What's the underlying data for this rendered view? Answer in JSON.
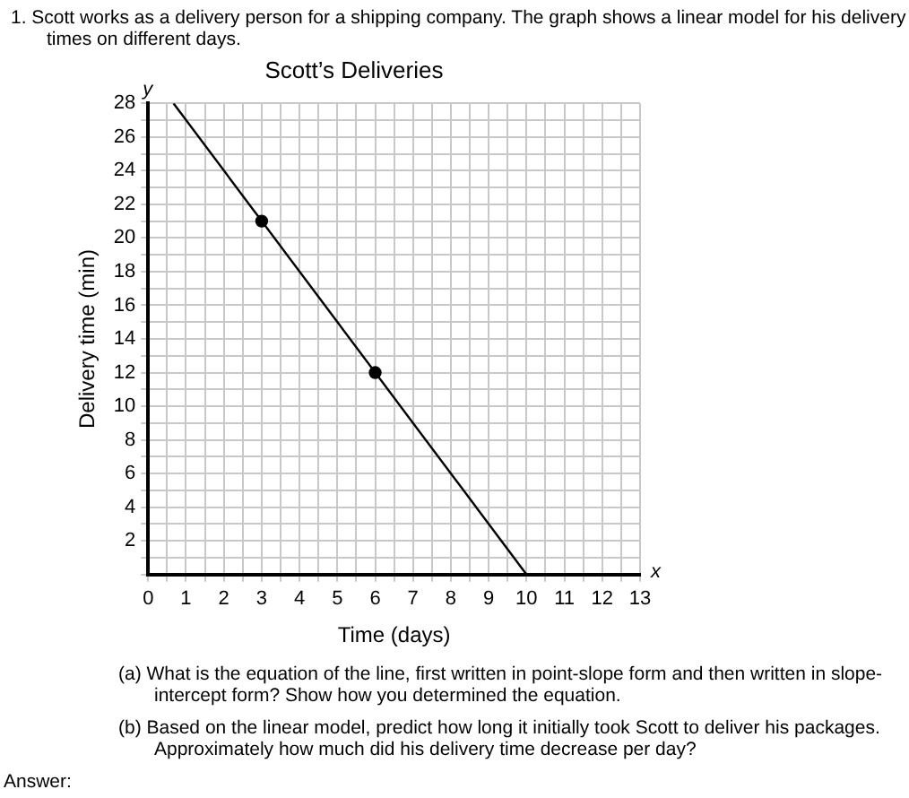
{
  "chart_data": {
    "type": "line",
    "title": "Scott’s Deliveries",
    "xlabel": "Time (days)",
    "ylabel": "Delivery time (min)",
    "annotations": [
      "1.  Scott works as a delivery person for a shipping company. The graph shows a linear model for his delivery times on different days.",
      "y",
      "x",
      "(a)  What is the equation of the line, first written in point-slope form and then written in slope-intercept form? Show how you determined the equation.",
      "(b)  Based on the linear model, predict how long it initially took Scott to deliver his packages. Approximately how much did his delivery time decrease per day?",
      "Answer:"
    ],
    "series": [
      {
        "color": "#000000",
        "x": [
          0.67,
          10
        ],
        "values": [
          28,
          0
        ],
        "marker": "none"
      },
      {
        "type": "scatter",
        "color": "#000000",
        "x": [
          3,
          6
        ],
        "values": [
          21,
          12
        ],
        "marker": "circle"
      }
    ],
    "xlim": [
      0,
      13
    ],
    "ylim": [
      0,
      28
    ],
    "xticks": [
      0,
      {
        "value": 0.5,
        "label": null
      },
      1,
      {
        "value": 1.5,
        "label": null
      },
      2,
      {
        "value": 2.5,
        "label": null
      },
      3,
      {
        "value": 3.5,
        "label": null
      },
      4,
      {
        "value": 4.5,
        "label": null
      },
      5,
      {
        "value": 5.5,
        "label": null
      },
      6,
      {
        "value": 6.5,
        "label": null
      },
      7,
      {
        "value": 7.5,
        "label": null
      },
      8,
      {
        "value": 8.5,
        "label": null
      },
      9,
      {
        "value": 9.5,
        "label": null
      },
      10,
      {
        "value": 10.5,
        "label": null
      },
      11,
      {
        "value": 11.5,
        "label": null
      },
      12,
      {
        "value": 12.5,
        "label": null
      },
      13
    ],
    "yticks": [
      {
        "value": 0,
        "label": null
      },
      {
        "value": 1,
        "label": null
      },
      2,
      {
        "value": 3,
        "label": null
      },
      4,
      {
        "value": 5,
        "label": null
      },
      6,
      {
        "value": 7,
        "label": null
      },
      8,
      {
        "value": 9,
        "label": null
      },
      10,
      {
        "value": 11,
        "label": null
      },
      12,
      {
        "value": 13,
        "label": null
      },
      14,
      {
        "value": 15,
        "label": null
      },
      16,
      {
        "value": 17,
        "label": null
      },
      18,
      {
        "value": 19,
        "label": null
      },
      20,
      {
        "value": 21,
        "label": null
      },
      22,
      {
        "value": 23,
        "label": null
      },
      24,
      {
        "value": 25,
        "label": null
      },
      26,
      {
        "value": 27,
        "label": null
      },
      28
    ],
    "grid": true,
    "legend": false
  }
}
